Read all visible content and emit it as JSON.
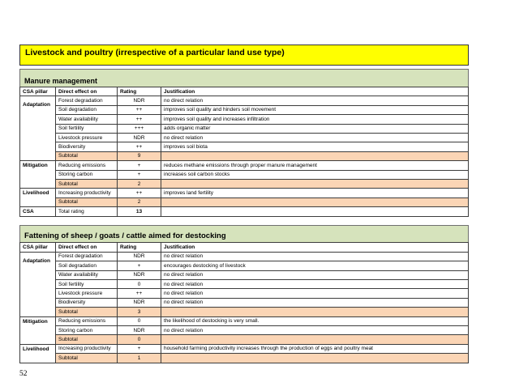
{
  "page": {
    "number": "52"
  },
  "colors": {
    "section_header_bg": "#FFFF00",
    "subsection_header_bg": "#D6E3BC",
    "subtotal_row_bg": "#FBD5B5",
    "table_border": "#3C3C3C"
  },
  "section1": {
    "title": "Livestock and poultry (irrespective of a particular land use type)",
    "subsection": "Manure management",
    "table": {
      "headers": [
        "CSA pillar",
        "Direct effect on",
        "Rating",
        "Justification"
      ],
      "rows": [
        {
          "pillar": "Adaptation",
          "span": 7,
          "effect": "Forest degradation",
          "rating": "NDR",
          "justification": "no direct relation"
        },
        {
          "effect": "Soil degradation",
          "rating": "++",
          "justification": "improves soil quality and hinders soil movement"
        },
        {
          "effect": "Water availability",
          "rating": "++",
          "justification": "improves soil quality and increases infiltration"
        },
        {
          "effect": "Soil fertility",
          "rating": "+++",
          "justification": "adds organic matter"
        },
        {
          "effect": "Livestock pressure",
          "rating": "NDR",
          "justification": "no direct relation"
        },
        {
          "effect": "Biodiversity",
          "rating": "++",
          "justification": "improves soil biota"
        },
        {
          "type": "subtotal",
          "effect": "Subtotal",
          "rating": "9",
          "justification": ""
        },
        {
          "pillar": "Mitigation",
          "span": 3,
          "effect": "Reducing emissions",
          "rating": "+",
          "justification": "reduces methane emissions through proper manure management"
        },
        {
          "effect": "Storing carbon",
          "rating": "+",
          "justification": "increases soil carbon stocks"
        },
        {
          "type": "subtotal",
          "effect": "Subtotal",
          "rating": "2",
          "justification": ""
        },
        {
          "pillar": "Livelihood",
          "span": 2,
          "effect": "Increasing productivity",
          "rating": "++",
          "justification": "improves land fertility"
        },
        {
          "type": "subtotal",
          "effect": "Subtotal",
          "rating": "2",
          "justification": ""
        },
        {
          "pillar": "CSA",
          "span": 1,
          "type": "total",
          "effect": "Total rating",
          "rating": "13",
          "justification": ""
        }
      ]
    }
  },
  "section2": {
    "title": "Fattening of sheep / goats / cattle aimed for destocking",
    "table": {
      "headers": [
        "CSA pillar",
        "Direct effect on",
        "Rating",
        "Justification"
      ],
      "rows": [
        {
          "pillar": "Adaptation",
          "span": 7,
          "effect": "Forest degradation",
          "rating": "NDR",
          "justification": "no direct relation"
        },
        {
          "effect": "Soil degradation",
          "rating": "+",
          "justification": "encourages destocking of livestock"
        },
        {
          "effect": "Water availability",
          "rating": "NDR",
          "justification": "no direct relation"
        },
        {
          "effect": "Soil fertility",
          "rating": "0",
          "justification": "no direct relation"
        },
        {
          "effect": "Livestock pressure",
          "rating": "++",
          "justification": "no direct relation"
        },
        {
          "effect": "Biodiversity",
          "rating": "NDR",
          "justification": "no direct relation"
        },
        {
          "type": "subtotal",
          "effect": "Subtotal",
          "rating": "3",
          "justification": ""
        },
        {
          "pillar": "Mitigation",
          "span": 3,
          "effect": "Reducing emissions",
          "rating": "0",
          "justification": "the likelihood of destocking is very small."
        },
        {
          "effect": "Storing carbon",
          "rating": "NDR",
          "justification": "no direct relation"
        },
        {
          "type": "subtotal",
          "effect": "Subtotal",
          "rating": "0",
          "justification": ""
        },
        {
          "pillar": "Livelihood",
          "span": 2,
          "effect": "Increasing productivity",
          "rating": "+",
          "justification": "household farming productivity increases through the production of eggs and poultry meat"
        },
        {
          "type": "subtotal",
          "effect": "Subtotal",
          "rating": "1",
          "justification": ""
        }
      ]
    }
  }
}
